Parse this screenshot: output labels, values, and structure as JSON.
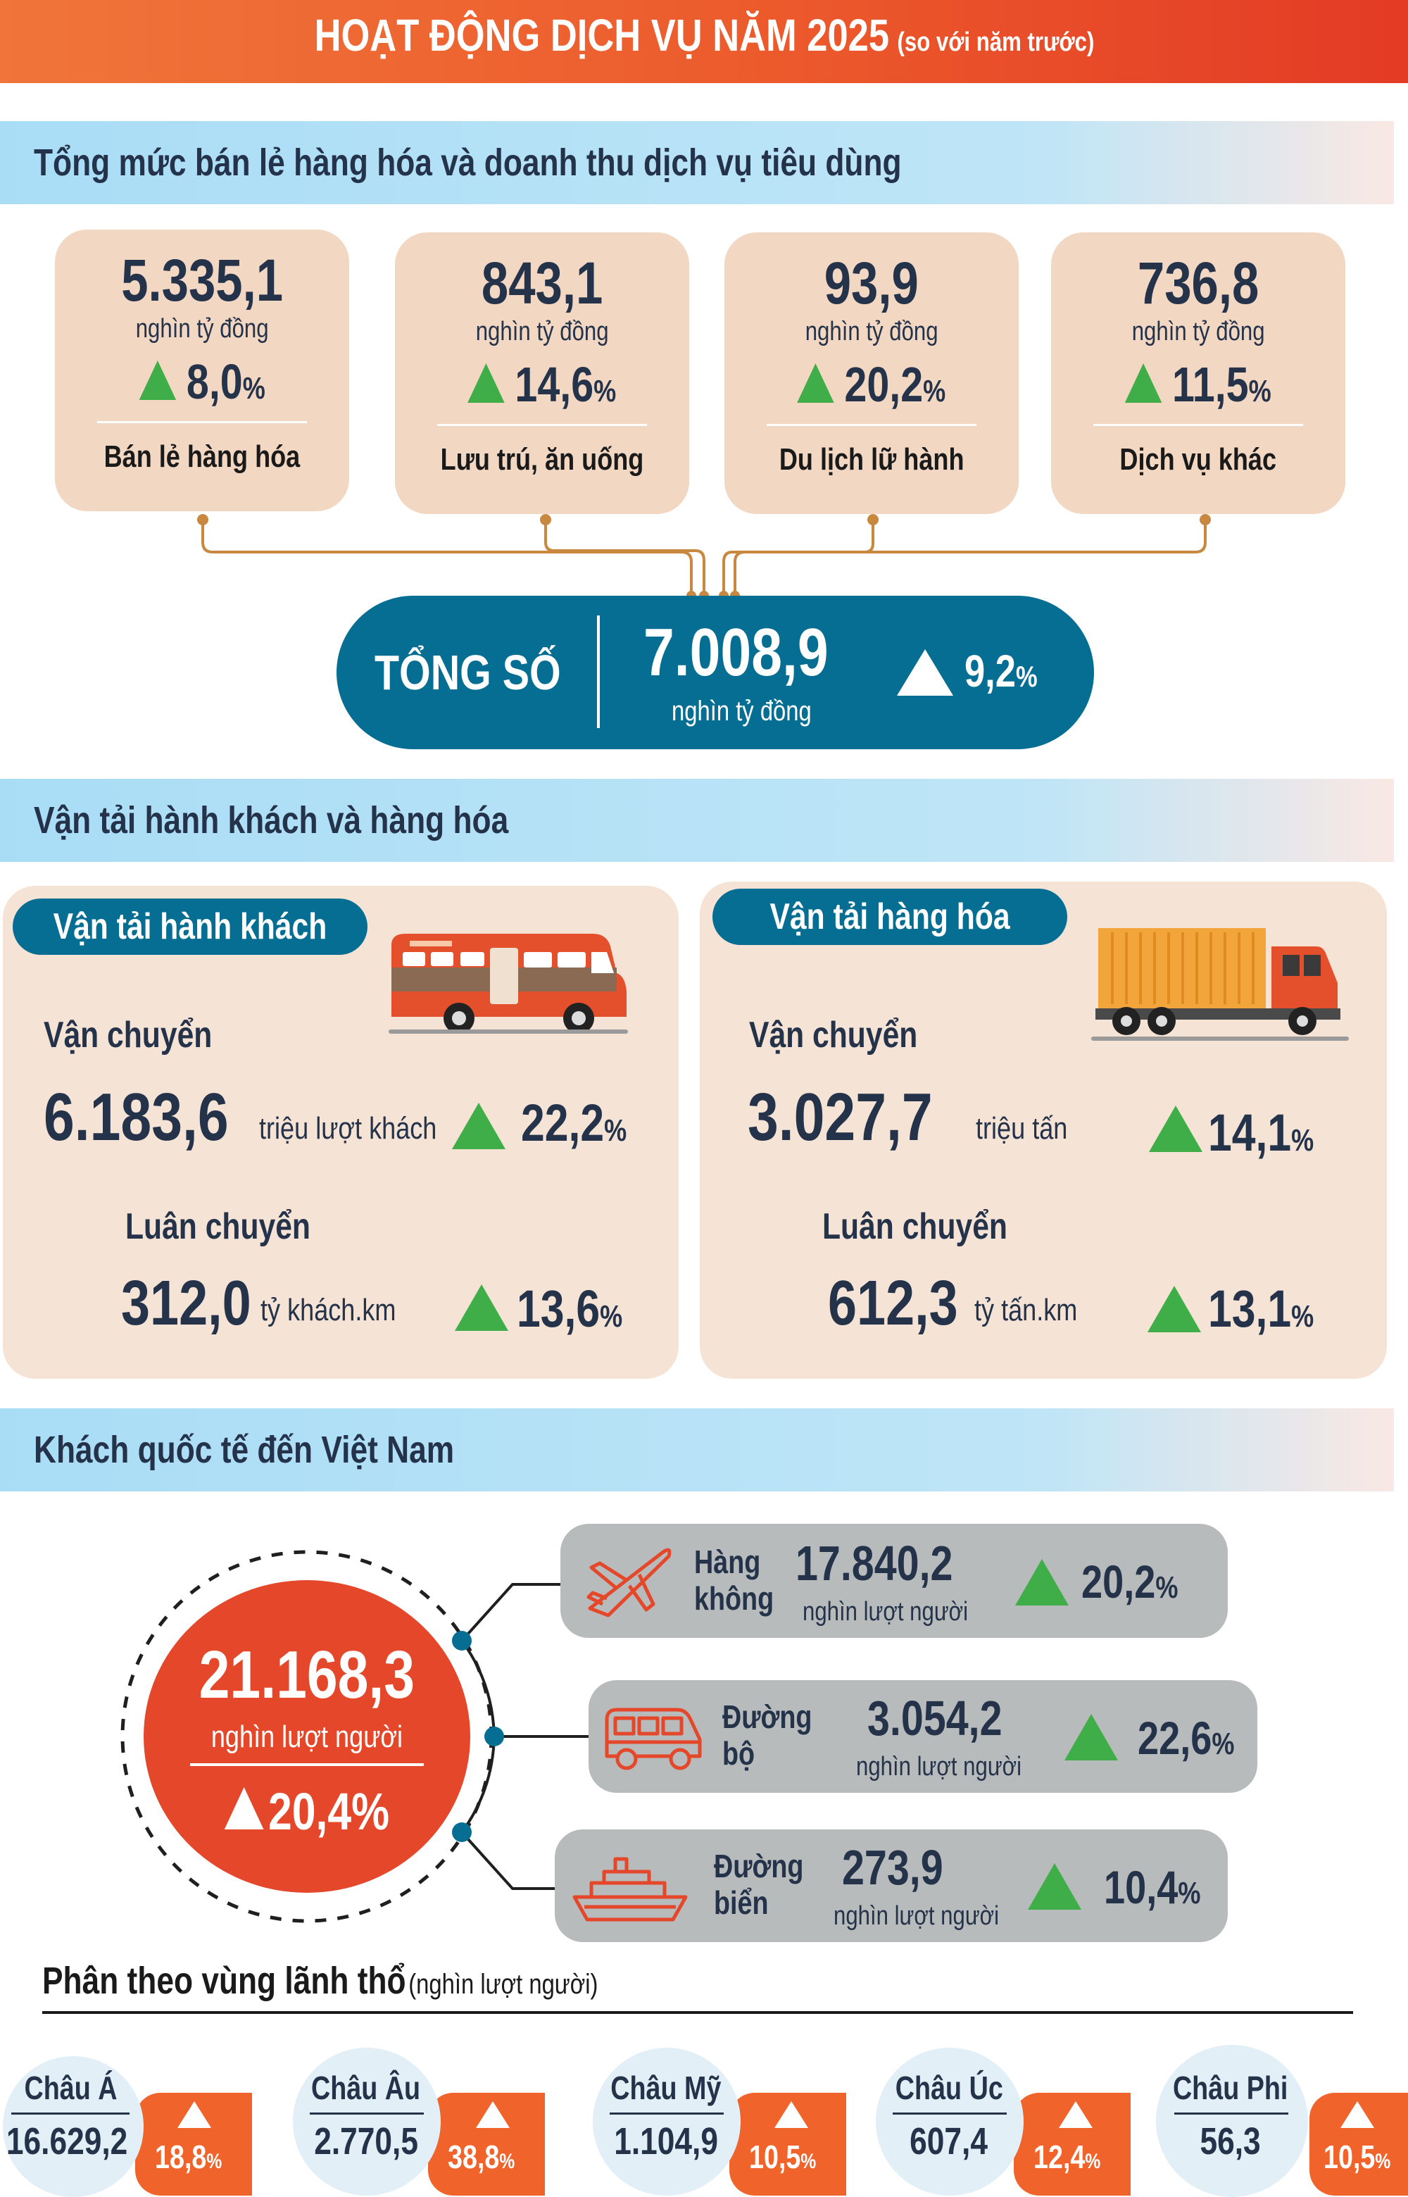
{
  "header": {
    "title": "HOẠT ĐỘNG DỊCH VỤ NĂM 2025",
    "subtitle": "(so với năm trước)"
  },
  "retail": {
    "section_title": "Tổng mức bán lẻ hàng hóa và doanh thu dịch vụ tiêu dùng",
    "items": [
      {
        "value": "5.335,1",
        "unit": "nghìn tỷ đồng",
        "growth": "8,0",
        "pct": "%",
        "name": "Bán lẻ hàng hóa"
      },
      {
        "value": "843,1",
        "unit": "nghìn tỷ đồng",
        "growth": "14,6",
        "pct": "%",
        "name": "Lưu trú, ăn uống"
      },
      {
        "value": "93,9",
        "unit": "nghìn tỷ đồng",
        "growth": "20,2",
        "pct": "%",
        "name": "Du lịch lữ hành"
      },
      {
        "value": "736,8",
        "unit": "nghìn tỷ đồng",
        "growth": "11,5",
        "pct": "%",
        "name": "Dịch vụ khác"
      }
    ],
    "total": {
      "label": "TỔNG SỐ",
      "value": "7.008,9",
      "unit": "nghìn tỷ đồng",
      "growth": "9,2",
      "pct": "%"
    }
  },
  "transport": {
    "section_title": "Vận tải hành khách và hàng hóa",
    "passenger": {
      "title": "Vận tải hành khách",
      "carried_label": "Vận chuyển",
      "carried_value": "6.183,6",
      "carried_unit": "triệu lượt khách",
      "carried_growth": "22,2",
      "rotation_label": "Luân chuyển",
      "rotation_value": "312,0",
      "rotation_unit": "tỷ khách.km",
      "rotation_growth": "13,6",
      "pct": "%"
    },
    "cargo": {
      "title": "Vận tải hàng hóa",
      "carried_label": "Vận chuyển",
      "carried_value": "3.027,7",
      "carried_unit": "triệu tấn",
      "carried_growth": "14,1",
      "rotation_label": "Luân chuyển",
      "rotation_value": "612,3",
      "rotation_unit": "tỷ tấn.km",
      "rotation_growth": "13,1",
      "pct": "%"
    }
  },
  "international": {
    "section_title": "Khách quốc tế đến Việt Nam",
    "total": {
      "value": "21.168,3",
      "unit": "nghìn lượt người",
      "growth": "20,4%"
    },
    "modes": [
      {
        "name_1": "Hàng",
        "name_2": "không",
        "value": "17.840,2",
        "unit": "nghìn lượt người",
        "growth": "20,2",
        "pct": "%",
        "icon": "airplane-icon"
      },
      {
        "name_1": "Đường",
        "name_2": "bộ",
        "value": "3.054,2",
        "unit": "nghìn lượt người",
        "growth": "22,6",
        "pct": "%",
        "icon": "van-icon"
      },
      {
        "name_1": "Đường",
        "name_2": "biển",
        "value": "273,9",
        "unit": "nghìn lượt người",
        "growth": "10,4",
        "pct": "%",
        "icon": "ship-icon"
      }
    ],
    "regions_title": "Phân theo vùng lãnh thổ",
    "regions_unit": "(nghìn lượt người)",
    "regions": [
      {
        "name": "Châu Á",
        "value": "16.629,2",
        "growth": "18,8",
        "pct": "%"
      },
      {
        "name": "Châu Âu",
        "value": "2.770,5",
        "growth": "38,8",
        "pct": "%"
      },
      {
        "name": "Châu Mỹ",
        "value": "1.104,9",
        "growth": "10,5",
        "pct": "%"
      },
      {
        "name": "Châu Úc",
        "value": "607,4",
        "growth": "12,4",
        "pct": "%"
      },
      {
        "name": "Châu Phi",
        "value": "56,3",
        "growth": "10,5",
        "pct": "%"
      }
    ]
  },
  "colors": {
    "accent_orange": "#ec5a2c",
    "teal": "#066e93",
    "growth_green": "#3fae49",
    "card_beige": "#f2d7c3",
    "section_blue": "#a9ddf6"
  }
}
